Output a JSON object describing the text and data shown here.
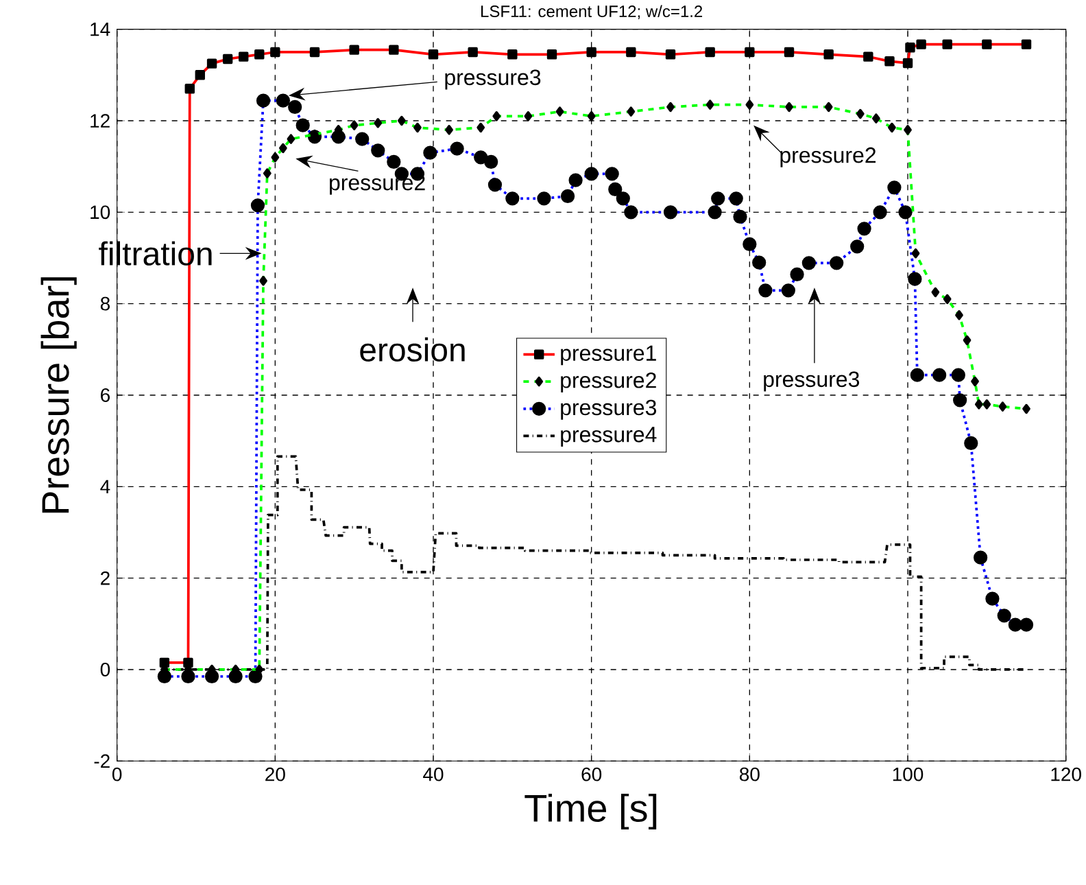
{
  "chart_data": {
    "type": "line",
    "title": "LSF11: cement UF12; w/c=1.2",
    "xlabel": "Time [s]",
    "ylabel": "Pressure [bar]",
    "xlim": [
      0,
      120
    ],
    "ylim": [
      -2,
      14
    ],
    "xticks": [
      0,
      20,
      40,
      60,
      80,
      100,
      120
    ],
    "yticks": [
      -2,
      0,
      2,
      4,
      6,
      8,
      10,
      12,
      14
    ],
    "grid": true,
    "legend": "center",
    "series": [
      {
        "name": "pressure1",
        "color": "#ff0000",
        "line_style": "solid",
        "marker": "square",
        "x": [
          6,
          9,
          9.2,
          10.5,
          12,
          14,
          16,
          18,
          20,
          25,
          30,
          35,
          40,
          45,
          50,
          55,
          60,
          65,
          70,
          75,
          80,
          85,
          90,
          95,
          97.7,
          100,
          100.3,
          101.7,
          105,
          110,
          115
        ],
        "values": [
          0.15,
          0.15,
          12.7,
          13.0,
          13.25,
          13.35,
          13.4,
          13.45,
          13.5,
          13.5,
          13.55,
          13.55,
          13.45,
          13.5,
          13.45,
          13.45,
          13.5,
          13.5,
          13.45,
          13.5,
          13.5,
          13.5,
          13.45,
          13.4,
          13.3,
          13.26,
          13.6,
          13.67,
          13.67,
          13.67,
          13.67
        ]
      },
      {
        "name": "pressure2",
        "color": "#00ff00",
        "line_style": "dashed",
        "marker": "diamond",
        "x": [
          6,
          9,
          12,
          15,
          18,
          18.5,
          19,
          20,
          21,
          22,
          25,
          28,
          30,
          33,
          36,
          38,
          42,
          46,
          48,
          52,
          56,
          60,
          65,
          70,
          75,
          80,
          85,
          90,
          94,
          96,
          98,
          100,
          101,
          103.5,
          105,
          106.5,
          107.5,
          108.5,
          109,
          110,
          112,
          115
        ],
        "values": [
          0,
          0,
          0,
          0,
          0,
          8.5,
          10.85,
          11.2,
          11.4,
          11.6,
          11.7,
          11.8,
          11.9,
          11.95,
          12.0,
          11.85,
          11.8,
          11.85,
          12.1,
          12.1,
          12.2,
          12.1,
          12.2,
          12.3,
          12.35,
          12.35,
          12.3,
          12.3,
          12.15,
          12.05,
          11.85,
          11.8,
          9.1,
          8.25,
          8.1,
          7.75,
          7.2,
          6.3,
          5.8,
          5.8,
          5.75,
          5.7
        ]
      },
      {
        "name": "pressure3",
        "color": "#0000ff",
        "line_style": "dotted",
        "marker": "circle",
        "x": [
          6,
          9,
          12,
          15,
          17.5,
          17.8,
          18.5,
          21,
          22.5,
          23.5,
          25,
          28,
          31,
          33,
          35,
          36,
          38,
          39.6,
          43,
          46,
          47.3,
          47.8,
          50,
          54,
          57,
          58,
          60,
          62.6,
          63,
          64,
          65,
          70,
          75.6,
          76,
          78.3,
          78.8,
          80,
          81.2,
          82,
          84.9,
          86,
          87.5,
          91,
          93.6,
          94.5,
          96.5,
          98.3,
          99.7,
          100.9,
          101.2,
          104,
          106.4,
          106.6,
          108,
          109.2,
          110.7,
          112.2,
          113.6,
          115
        ],
        "values": [
          -0.15,
          -0.15,
          -0.15,
          -0.15,
          -0.15,
          10.15,
          12.44,
          12.44,
          12.3,
          11.9,
          11.65,
          11.65,
          11.6,
          11.35,
          11.1,
          10.84,
          10.84,
          11.3,
          11.39,
          11.2,
          11.1,
          10.6,
          10.3,
          10.3,
          10.35,
          10.7,
          10.84,
          10.84,
          10.5,
          10.3,
          10.0,
          10.0,
          10.0,
          10.3,
          10.3,
          9.9,
          9.3,
          8.9,
          8.29,
          8.29,
          8.64,
          8.89,
          8.89,
          9.25,
          9.64,
          10.0,
          10.54,
          10.0,
          8.54,
          6.44,
          6.44,
          6.44,
          5.89,
          4.95,
          2.45,
          1.55,
          1.18,
          0.98,
          0.98
        ]
      },
      {
        "name": "pressure4",
        "color": "#000000",
        "line_style": "dashdot",
        "marker": "none",
        "x": [
          6,
          19,
          19.1,
          20.3,
          20.3,
          22.6,
          22.9,
          24.6,
          24.6,
          26.1,
          26.4,
          28.7,
          28.7,
          31.9,
          32,
          33.5,
          33.5,
          34.8,
          34.8,
          36,
          36,
          40,
          40.3,
          42.9,
          42.9,
          45.8,
          45.8,
          51.6,
          51.6,
          59.7,
          59.7,
          69,
          69,
          75.6,
          75.6,
          84.3,
          84.3,
          91.3,
          91.3,
          97.1,
          97.4,
          100.3,
          100.3,
          101.7,
          101.7,
          104.6,
          104.6,
          107.8,
          107.8,
          109,
          109,
          115
        ],
        "values": [
          0,
          0,
          3.38,
          3.38,
          4.66,
          4.66,
          3.93,
          3.93,
          3.28,
          3.28,
          2.93,
          2.93,
          3.11,
          3.11,
          2.75,
          2.75,
          2.6,
          2.6,
          2.38,
          2.38,
          2.13,
          2.13,
          2.98,
          2.98,
          2.71,
          2.71,
          2.66,
          2.66,
          2.6,
          2.6,
          2.55,
          2.55,
          2.5,
          2.5,
          2.43,
          2.43,
          2.4,
          2.4,
          2.35,
          2.35,
          2.73,
          2.73,
          2.03,
          2.03,
          0.03,
          0.03,
          0.28,
          0.28,
          0.1,
          0.1,
          0,
          0
        ]
      }
    ],
    "annotations": [
      "pressure3",
      "pressure2",
      "filtration",
      "erosion",
      "pressure2",
      "pressure3"
    ]
  }
}
